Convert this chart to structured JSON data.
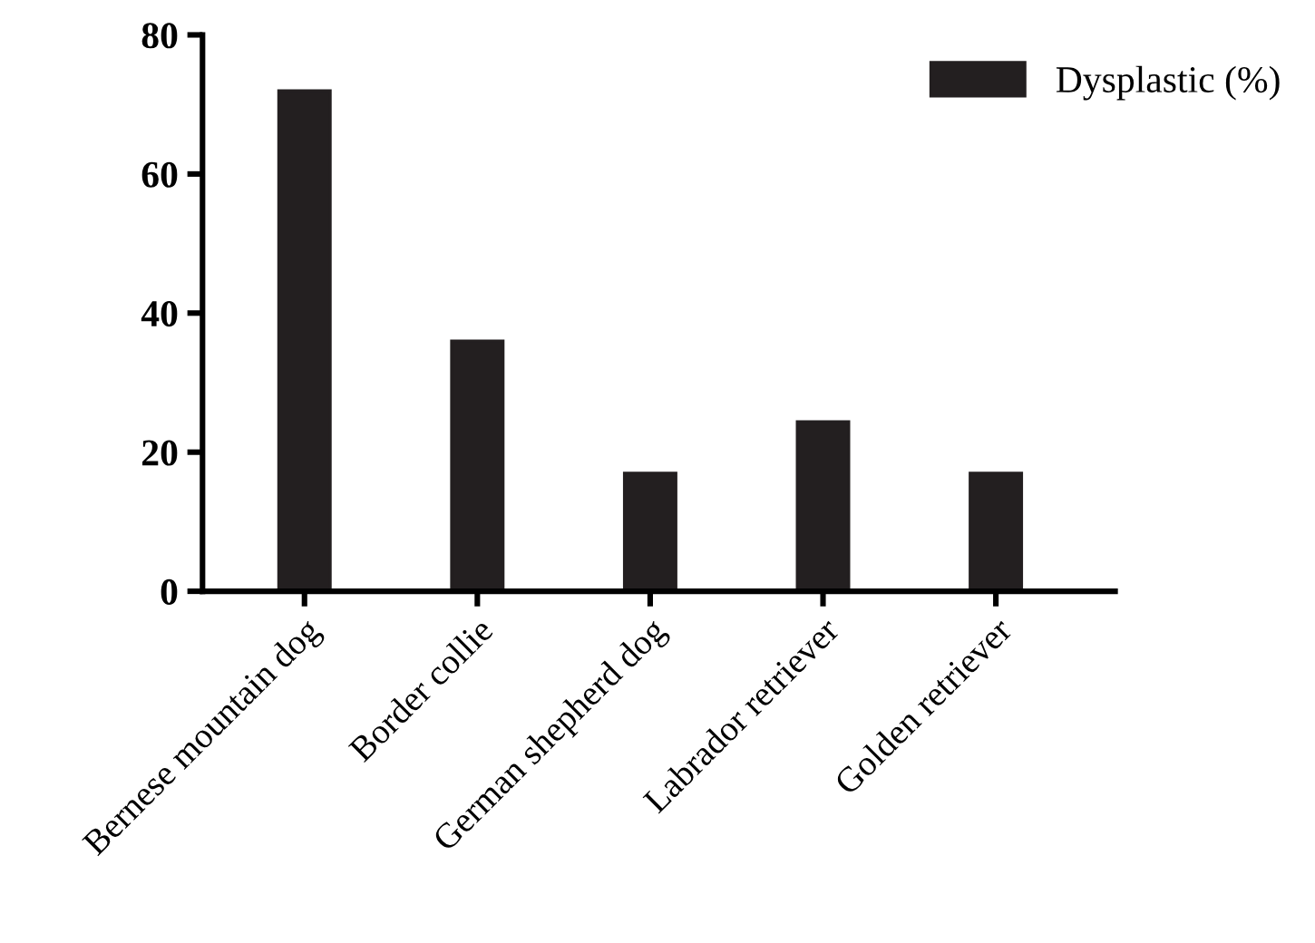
{
  "chart_data": {
    "type": "bar",
    "categories": [
      "Bernese mountain dog",
      "Border collie",
      "German shepherd dog",
      "Labrador retriever",
      "Golden retriever"
    ],
    "series": [
      {
        "name": "Dysplastic (%)",
        "color": "#231f20",
        "values": [
          72,
          36,
          17,
          24.4,
          17
        ]
      }
    ],
    "ylim": [
      0,
      80
    ],
    "yticks": [
      0,
      20,
      40,
      60,
      80
    ],
    "grid": false,
    "legend": "top right"
  }
}
